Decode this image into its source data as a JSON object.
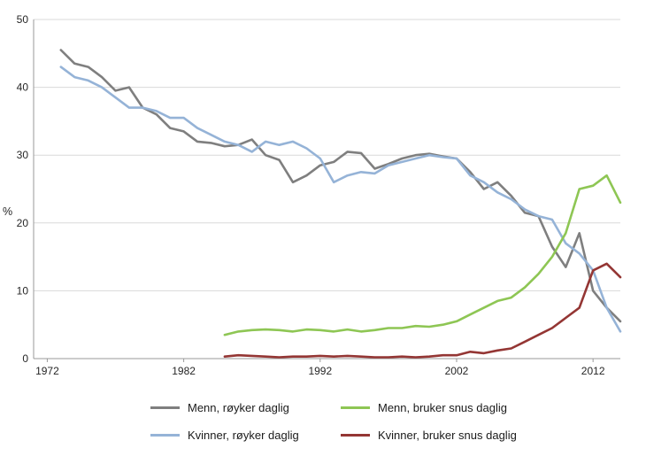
{
  "chart_data": {
    "type": "line",
    "ylabel": "%",
    "xlim": [
      1971,
      2014
    ],
    "ylim": [
      0,
      50
    ],
    "yticks": [
      0,
      10,
      20,
      30,
      40,
      50
    ],
    "xticks": [
      1972,
      1982,
      1992,
      2002,
      2012
    ],
    "grid": "horizontal",
    "legend_position": "bottom",
    "legend_order": [
      0,
      2,
      1,
      3
    ],
    "series": [
      {
        "name": "Menn, røyker daglig",
        "color": "#7f7f7f",
        "start_year": 1973,
        "values": [
          45.5,
          43.5,
          43.0,
          41.5,
          39.5,
          40.0,
          37.0,
          36.0,
          34.0,
          33.5,
          32.0,
          31.8,
          31.3,
          31.5,
          32.3,
          30.0,
          29.3,
          26.0,
          27.0,
          28.5,
          29.0,
          30.5,
          30.3,
          28.0,
          28.7,
          29.5,
          30.0,
          30.2,
          29.8,
          29.5,
          27.5,
          25.0,
          26.0,
          24.0,
          21.5,
          21.0,
          16.5,
          13.5,
          18.5,
          10.0,
          7.5,
          5.5
        ]
      },
      {
        "name": "Kvinner, røyker daglig",
        "color": "#95b3d7",
        "start_year": 1973,
        "values": [
          43.0,
          41.5,
          41.0,
          40.0,
          38.5,
          37.0,
          37.0,
          36.5,
          35.5,
          35.5,
          34.0,
          33.0,
          32.0,
          31.5,
          30.5,
          32.0,
          31.5,
          32.0,
          31.0,
          29.5,
          26.0,
          27.0,
          27.5,
          27.3,
          28.5,
          29.0,
          29.5,
          30.0,
          29.7,
          29.5,
          27.0,
          26.0,
          24.5,
          23.5,
          22.0,
          21.0,
          20.5,
          17.0,
          15.5,
          13.0,
          7.5,
          4.0
        ]
      },
      {
        "name": "Menn, bruker snus daglig",
        "color": "#8ec654",
        "start_year": 1985,
        "values": [
          3.5,
          4.0,
          4.2,
          4.3,
          4.2,
          4.0,
          4.3,
          4.2,
          4.0,
          4.3,
          4.0,
          4.2,
          4.5,
          4.5,
          4.8,
          4.7,
          5.0,
          5.5,
          6.5,
          7.5,
          8.5,
          9.0,
          10.5,
          12.5,
          15.0,
          18.5,
          25.0,
          25.5,
          27.0,
          23.0
        ]
      },
      {
        "name": "Kvinner, bruker snus daglig",
        "color": "#943634",
        "start_year": 1985,
        "values": [
          0.3,
          0.5,
          0.4,
          0.3,
          0.2,
          0.3,
          0.3,
          0.4,
          0.3,
          0.4,
          0.3,
          0.2,
          0.2,
          0.3,
          0.2,
          0.3,
          0.5,
          0.5,
          1.0,
          0.8,
          1.2,
          1.5,
          2.5,
          3.5,
          4.5,
          6.0,
          7.5,
          13.0,
          14.0,
          12.0
        ]
      }
    ]
  }
}
